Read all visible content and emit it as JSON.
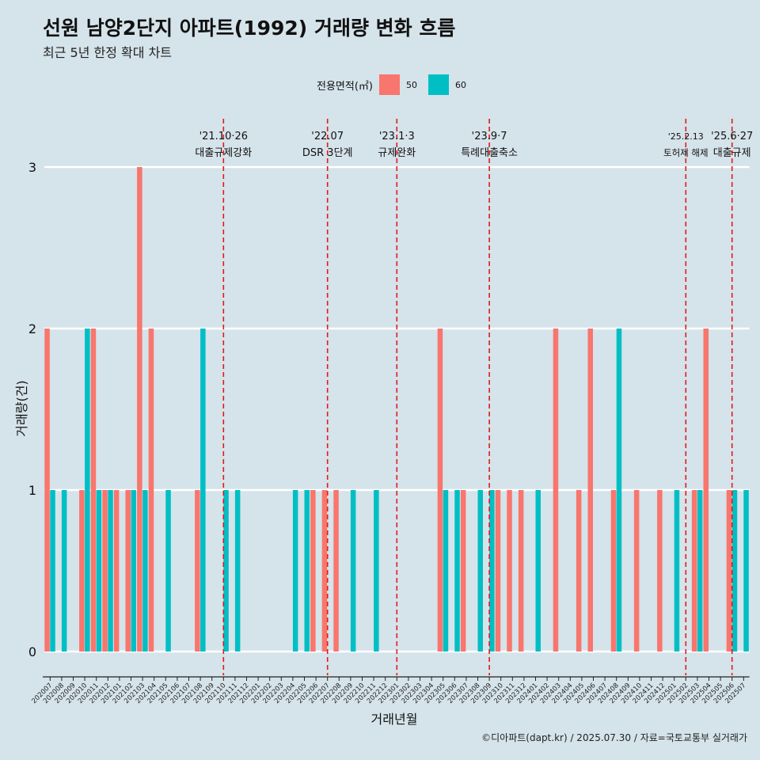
{
  "header": {
    "title": "선원 남양2단지 아파트(1992) 거래량 변화 흐름",
    "subtitle": "최근 5년 한정 확대 차트"
  },
  "legend": {
    "title": "전용면적(㎡)",
    "items": [
      {
        "label": "50",
        "color": "#f8766d"
      },
      {
        "label": "60",
        "color": "#00bfc4"
      }
    ]
  },
  "caption": "©디아파트(dapt.kr) / 2025.07.30 / 자료=국토교통부 실거래가",
  "chart_data": {
    "type": "bar",
    "xlabel": "거래년월",
    "ylabel": "거래량(건)",
    "ylim": [
      0,
      3
    ],
    "yticks": [
      0,
      1,
      2,
      3
    ],
    "categories": [
      "202007",
      "202008",
      "202009",
      "202010",
      "202011",
      "202012",
      "202101",
      "202102",
      "202103",
      "202104",
      "202105",
      "202106",
      "202107",
      "202108",
      "202109",
      "202110",
      "202111",
      "202112",
      "202201",
      "202202",
      "202203",
      "202204",
      "202205",
      "202206",
      "202207",
      "202208",
      "202209",
      "202210",
      "202211",
      "202212",
      "202301",
      "202302",
      "202303",
      "202304",
      "202305",
      "202306",
      "202307",
      "202308",
      "202309",
      "202310",
      "202311",
      "202312",
      "202401",
      "202402",
      "202403",
      "202404",
      "202405",
      "202406",
      "202407",
      "202408",
      "202409",
      "202410",
      "202411",
      "202412",
      "202501",
      "202502",
      "202503",
      "202504",
      "202505",
      "202506",
      "202507"
    ],
    "series": [
      {
        "name": "50",
        "color": "#f8766d",
        "values": [
          2,
          0,
          0,
          1,
          2,
          1,
          1,
          1,
          3,
          2,
          0,
          0,
          0,
          1,
          0,
          0,
          0,
          0,
          0,
          0,
          0,
          0,
          0,
          1,
          1,
          1,
          0,
          0,
          0,
          0,
          0,
          0,
          0,
          0,
          2,
          0,
          1,
          0,
          0,
          1,
          1,
          1,
          0,
          0,
          2,
          0,
          1,
          2,
          0,
          1,
          0,
          1,
          0,
          1,
          0,
          0,
          1,
          2,
          0,
          1,
          0
        ]
      },
      {
        "name": "60",
        "color": "#00bfc4",
        "values": [
          1,
          1,
          0,
          2,
          1,
          1,
          0,
          1,
          1,
          0,
          1,
          0,
          0,
          2,
          0,
          1,
          1,
          0,
          0,
          0,
          0,
          1,
          1,
          0,
          0,
          0,
          1,
          0,
          1,
          0,
          0,
          0,
          0,
          0,
          1,
          1,
          0,
          1,
          1,
          0,
          0,
          0,
          1,
          0,
          0,
          0,
          0,
          0,
          0,
          2,
          0,
          0,
          0,
          0,
          1,
          0,
          1,
          0,
          0,
          1,
          1
        ]
      }
    ],
    "annotations": [
      {
        "x": "202110",
        "date": "'21.10·26",
        "label": "대출규제강화"
      },
      {
        "x": "202207",
        "date": "'22.07",
        "label": "DSR 3단계"
      },
      {
        "x": "202301",
        "date": "'23.1·3",
        "label": "규제완화"
      },
      {
        "x": "202309",
        "date": "'23.9·7",
        "label": "특례대출축소"
      },
      {
        "x": "202502",
        "date": "'25.2.13",
        "label": "토허제 해제"
      },
      {
        "x": "202506",
        "date": "'25.6·27",
        "label": "대출규제"
      }
    ]
  }
}
